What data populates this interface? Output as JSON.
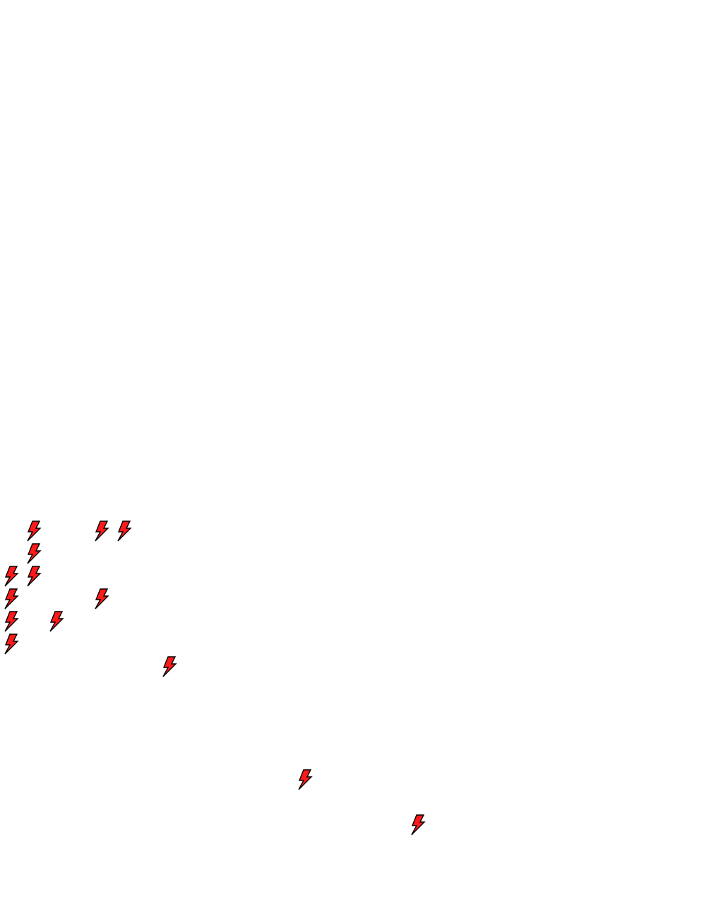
{
  "game": {
    "grid_cell_units": "tiles",
    "bolt_color": "#ff1a1a",
    "bolt_outline_color": "#000000",
    "background_color": "#ffffff",
    "icon": "lightning-bolt-icon",
    "bolts": [
      {
        "col": 1,
        "row": 23
      },
      {
        "col": 4,
        "row": 23
      },
      {
        "col": 5,
        "row": 23
      },
      {
        "col": 1,
        "row": 24
      },
      {
        "col": 0,
        "row": 25
      },
      {
        "col": 1,
        "row": 25
      },
      {
        "col": 0,
        "row": 26
      },
      {
        "col": 4,
        "row": 26
      },
      {
        "col": 0,
        "row": 27
      },
      {
        "col": 2,
        "row": 27
      },
      {
        "col": 0,
        "row": 28
      },
      {
        "col": 7,
        "row": 29
      },
      {
        "col": 13,
        "row": 34
      },
      {
        "col": 18,
        "row": 36
      }
    ]
  }
}
